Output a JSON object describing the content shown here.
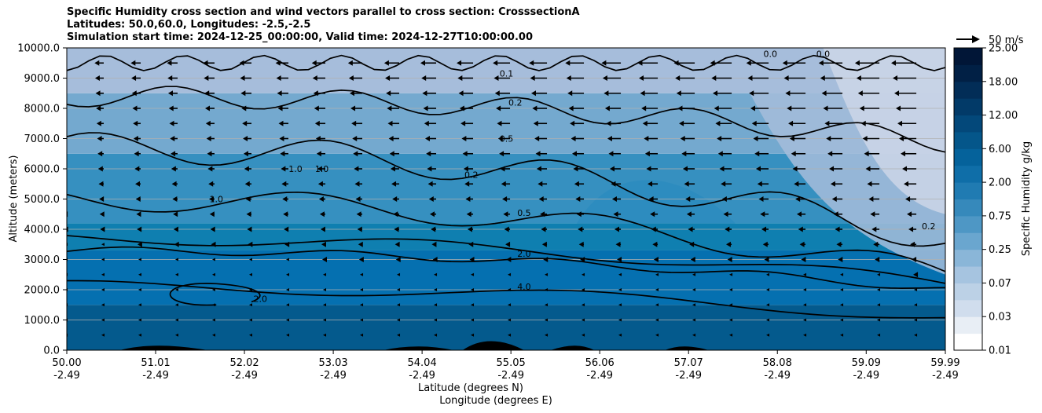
{
  "chart_data": {
    "type": "heatmap",
    "title_lines": [
      "Specific Humidity cross section and wind vectors parallel to cross section: CrosssectionA",
      "Latitudes: 50.0,60.0, Longitudes: -2.5,-2.5",
      "Simulation start time: 2024-12-25_00:00:00, Valid time: 2024-12-27T10:00:00.00"
    ],
    "ylabel": "Altitude (meters)",
    "xlabel_lines": [
      "Latitude (degrees N)",
      "Longitude (degrees E)"
    ],
    "ylim": [
      0,
      10000
    ],
    "y_ticks": [
      "0.0",
      "1000.0",
      "2000.0",
      "3000.0",
      "4000.0",
      "5000.0",
      "6000.0",
      "7000.0",
      "8000.0",
      "9000.0",
      "10000.0"
    ],
    "x_ticks_lat": [
      "50.00",
      "51.01",
      "52.02",
      "53.03",
      "54.04",
      "55.05",
      "56.06",
      "57.07",
      "58.08",
      "59.09",
      "59.99"
    ],
    "x_ticks_lon": [
      "-2.49",
      "-2.49",
      "-2.49",
      "-2.49",
      "-2.49",
      "-2.49",
      "-2.49",
      "-2.49",
      "-2.49",
      "-2.49",
      "-2.49"
    ],
    "grid": "horizontal",
    "colorbar": {
      "label": "Specific Humidity g/kg",
      "tick_labels": [
        "0.01",
        "0.03",
        "0.07",
        "0.25",
        "0.75",
        "2.00",
        "6.00",
        "12.00",
        "18.00",
        "25.00"
      ],
      "colormap": "PuBu"
    },
    "quiver_key": "50 m/s",
    "contour_levels": [
      "0.1",
      "0.2",
      "0.5",
      "1.0",
      "2.0",
      "4.0"
    ],
    "contour_labels": [
      {
        "text": "0.1",
        "lat": 55.0,
        "alt": 9150
      },
      {
        "text": "0.2",
        "lat": 55.1,
        "alt": 8200
      },
      {
        "text": "0.5",
        "lat": 55.0,
        "alt": 7000
      },
      {
        "text": "0.5",
        "lat": 55.2,
        "alt": 4550
      },
      {
        "text": "2.0",
        "lat": 55.2,
        "alt": 3200
      },
      {
        "text": "4.0",
        "lat": 55.2,
        "alt": 2100
      },
      {
        "text": "1.0",
        "lat": 52.6,
        "alt": 6000
      },
      {
        "text": "1.0",
        "lat": 52.9,
        "alt": 6000
      },
      {
        "text": "1.0",
        "lat": 51.7,
        "alt": 5000
      },
      {
        "text": "2.0",
        "lat": 52.2,
        "alt": 1700
      },
      {
        "text": "0.2",
        "lat": 54.6,
        "alt": 5800
      },
      {
        "text": "0.0",
        "lat": 58.0,
        "alt": 9800
      },
      {
        "text": "0.0",
        "lat": 58.6,
        "alt": 9800
      },
      {
        "text": "0.2",
        "lat": 59.8,
        "alt": 4100
      }
    ],
    "humidity_layers_gkg": [
      {
        "alt_top": 1500,
        "value": 12.0
      },
      {
        "alt_top": 3300,
        "value": 6.0
      },
      {
        "alt_top": 4200,
        "value": 2.0
      },
      {
        "alt_top": 6500,
        "value": 0.75
      },
      {
        "alt_top": 8500,
        "value": 0.25
      },
      {
        "alt_top": 10000,
        "value": 0.07
      }
    ]
  }
}
